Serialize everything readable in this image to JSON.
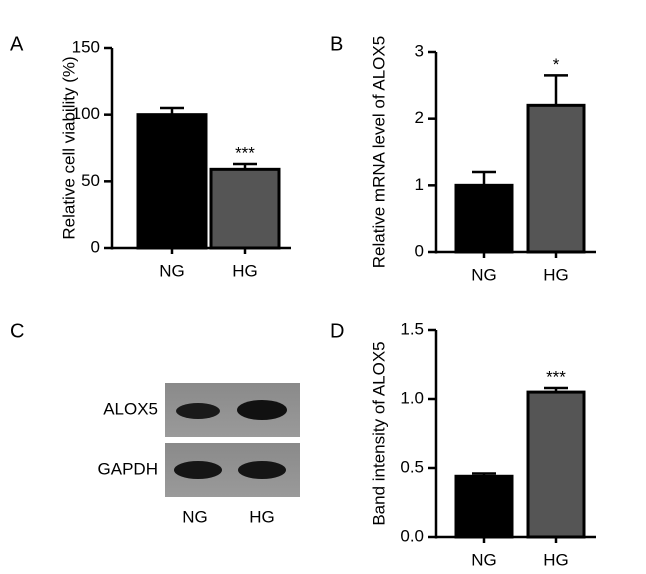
{
  "chart_data": [
    {
      "type": "bar",
      "panel": "A",
      "ylabel": "Relative cell viability (%)",
      "categories": [
        "NG",
        "HG"
      ],
      "values": [
        100,
        59
      ],
      "errors": [
        5,
        4
      ],
      "colors": [
        "#000000",
        "#555555"
      ],
      "significance": [
        null,
        "***"
      ],
      "ylim": [
        0,
        150
      ],
      "yticks": [
        0,
        50,
        100,
        150
      ]
    },
    {
      "type": "bar",
      "panel": "B",
      "ylabel": "Relative mRNA level of ALOX5",
      "categories": [
        "NG",
        "HG"
      ],
      "values": [
        1.0,
        2.2
      ],
      "errors": [
        0.2,
        0.45
      ],
      "colors": [
        "#000000",
        "#555555"
      ],
      "significance": [
        null,
        "*"
      ],
      "ylim": [
        0,
        3
      ],
      "yticks": [
        0,
        1,
        2,
        3
      ]
    },
    {
      "type": "bar",
      "panel": "D",
      "ylabel": "Band intensity of ALOX5",
      "categories": [
        "NG",
        "HG"
      ],
      "values": [
        0.44,
        1.05
      ],
      "errors": [
        0.02,
        0.03
      ],
      "colors": [
        "#000000",
        "#555555"
      ],
      "significance": [
        null,
        "***"
      ],
      "ylim": [
        0,
        1.5
      ],
      "yticks": [
        {
          "value": 0,
          "label": "0.0"
        },
        0.5,
        {
          "value": 1,
          "label": "1.0"
        },
        1.5
      ]
    }
  ],
  "blot": {
    "panel": "C",
    "rows": [
      "ALOX5",
      "GAPDH"
    ],
    "lanes": [
      "NG",
      "HG"
    ]
  }
}
